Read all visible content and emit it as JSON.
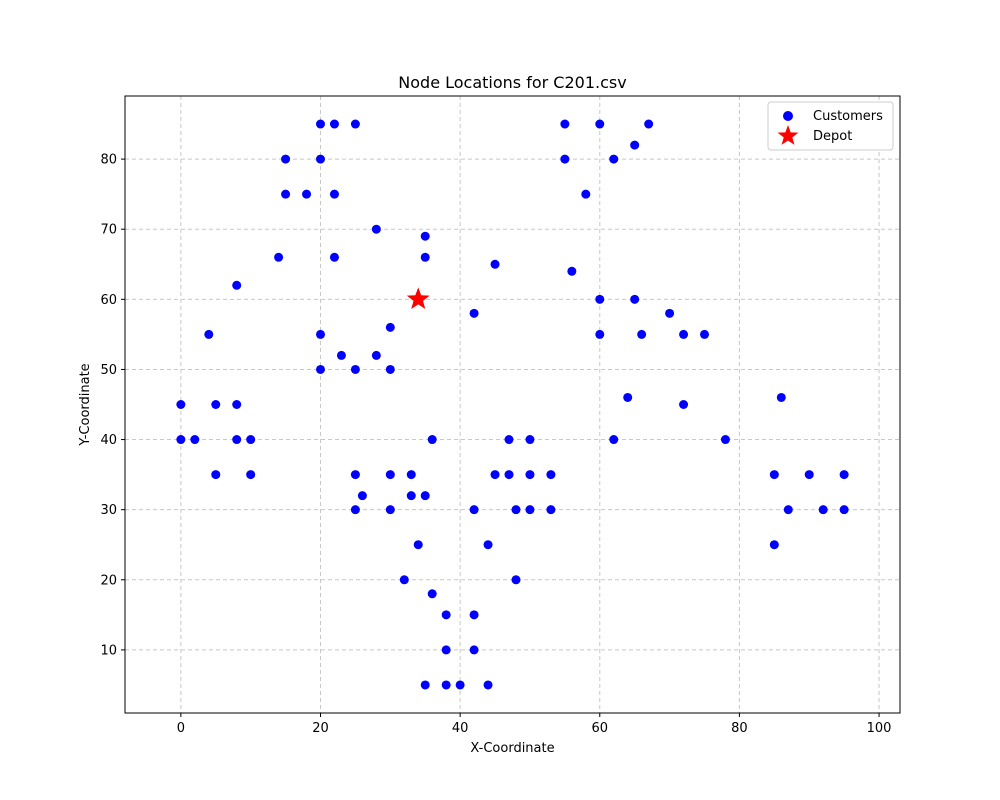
{
  "chart_data": {
    "type": "scatter",
    "title": "Node Locations for C201.csv",
    "xlabel": "X-Coordinate",
    "ylabel": "Y-Coordinate",
    "xlim": [
      -8,
      103
    ],
    "ylim": [
      1,
      89
    ],
    "xticks": [
      0,
      20,
      40,
      60,
      80,
      100
    ],
    "yticks": [
      10,
      20,
      30,
      40,
      50,
      60,
      70,
      80
    ],
    "grid": true,
    "legend_position": "top-right",
    "series": [
      {
        "name": "Customers",
        "marker": "circle",
        "color": "#0000ff",
        "points": [
          [
            20,
            85
          ],
          [
            22,
            85
          ],
          [
            25,
            85
          ],
          [
            55,
            85
          ],
          [
            60,
            85
          ],
          [
            67,
            85
          ],
          [
            65,
            82
          ],
          [
            15,
            80
          ],
          [
            20,
            80
          ],
          [
            55,
            80
          ],
          [
            62,
            80
          ],
          [
            15,
            75
          ],
          [
            18,
            75
          ],
          [
            22,
            75
          ],
          [
            58,
            75
          ],
          [
            28,
            70
          ],
          [
            35,
            69
          ],
          [
            14,
            66
          ],
          [
            22,
            66
          ],
          [
            35,
            66
          ],
          [
            45,
            65
          ],
          [
            56,
            64
          ],
          [
            8,
            62
          ],
          [
            60,
            60
          ],
          [
            65,
            60
          ],
          [
            42,
            58
          ],
          [
            70,
            58
          ],
          [
            30,
            56
          ],
          [
            4,
            55
          ],
          [
            20,
            55
          ],
          [
            60,
            55
          ],
          [
            66,
            55
          ],
          [
            72,
            55
          ],
          [
            75,
            55
          ],
          [
            23,
            52
          ],
          [
            28,
            52
          ],
          [
            20,
            50
          ],
          [
            25,
            50
          ],
          [
            30,
            50
          ],
          [
            64,
            46
          ],
          [
            86,
            46
          ],
          [
            0,
            45
          ],
          [
            5,
            45
          ],
          [
            8,
            45
          ],
          [
            72,
            45
          ],
          [
            0,
            40
          ],
          [
            2,
            40
          ],
          [
            8,
            40
          ],
          [
            10,
            40
          ],
          [
            36,
            40
          ],
          [
            47,
            40
          ],
          [
            50,
            40
          ],
          [
            62,
            40
          ],
          [
            78,
            40
          ],
          [
            5,
            35
          ],
          [
            10,
            35
          ],
          [
            25,
            35
          ],
          [
            30,
            35
          ],
          [
            33,
            35
          ],
          [
            45,
            35
          ],
          [
            47,
            35
          ],
          [
            50,
            35
          ],
          [
            53,
            35
          ],
          [
            85,
            35
          ],
          [
            90,
            35
          ],
          [
            95,
            35
          ],
          [
            26,
            32
          ],
          [
            33,
            32
          ],
          [
            35,
            32
          ],
          [
            25,
            30
          ],
          [
            30,
            30
          ],
          [
            42,
            30
          ],
          [
            48,
            30
          ],
          [
            50,
            30
          ],
          [
            53,
            30
          ],
          [
            87,
            30
          ],
          [
            92,
            30
          ],
          [
            95,
            30
          ],
          [
            34,
            25
          ],
          [
            44,
            25
          ],
          [
            85,
            25
          ],
          [
            32,
            20
          ],
          [
            48,
            20
          ],
          [
            36,
            18
          ],
          [
            38,
            15
          ],
          [
            42,
            15
          ],
          [
            38,
            10
          ],
          [
            42,
            10
          ],
          [
            35,
            5
          ],
          [
            38,
            5
          ],
          [
            40,
            5
          ],
          [
            44,
            5
          ]
        ]
      },
      {
        "name": "Depot",
        "marker": "star",
        "color": "#ff0000",
        "points": [
          [
            34,
            60
          ]
        ]
      }
    ]
  }
}
